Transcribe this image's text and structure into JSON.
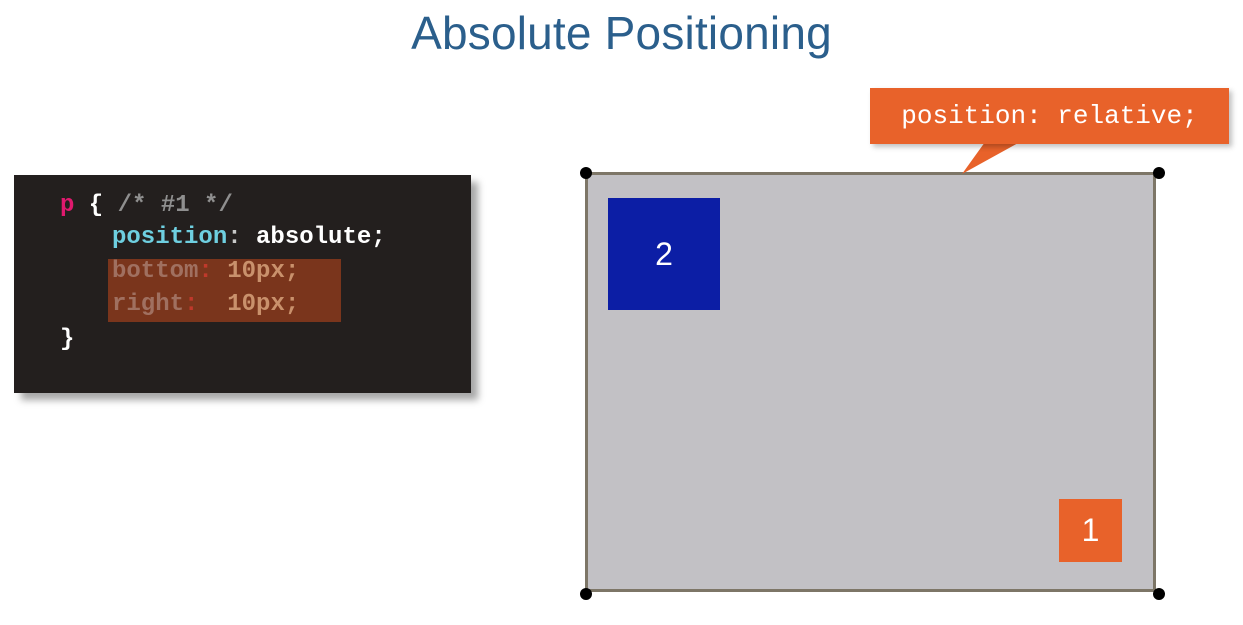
{
  "slide": {
    "title": "Absolute Positioning"
  },
  "code": {
    "selector": "p",
    "open_brace": " { ",
    "comment": "/* #1 */",
    "line2_prop": "position",
    "line2_colon": ": ",
    "line2_value": "absolute;",
    "line3_prop": "bottom",
    "line3_colon": ": ",
    "line3_value": "10px;",
    "line4_prop": "right",
    "line4_colon": ":  ",
    "line4_value": "10px;",
    "close_brace": "}"
  },
  "diagram": {
    "callout_text": "position: relative;",
    "box_2_label": "2",
    "box_1_label": "1"
  },
  "colors": {
    "title": "#2b5f8c",
    "code_background": "#231f1e",
    "container": "#c2c1c5",
    "box_2": "#0c1ea5",
    "box_1": "#e8622a",
    "callout": "#e8622a"
  }
}
